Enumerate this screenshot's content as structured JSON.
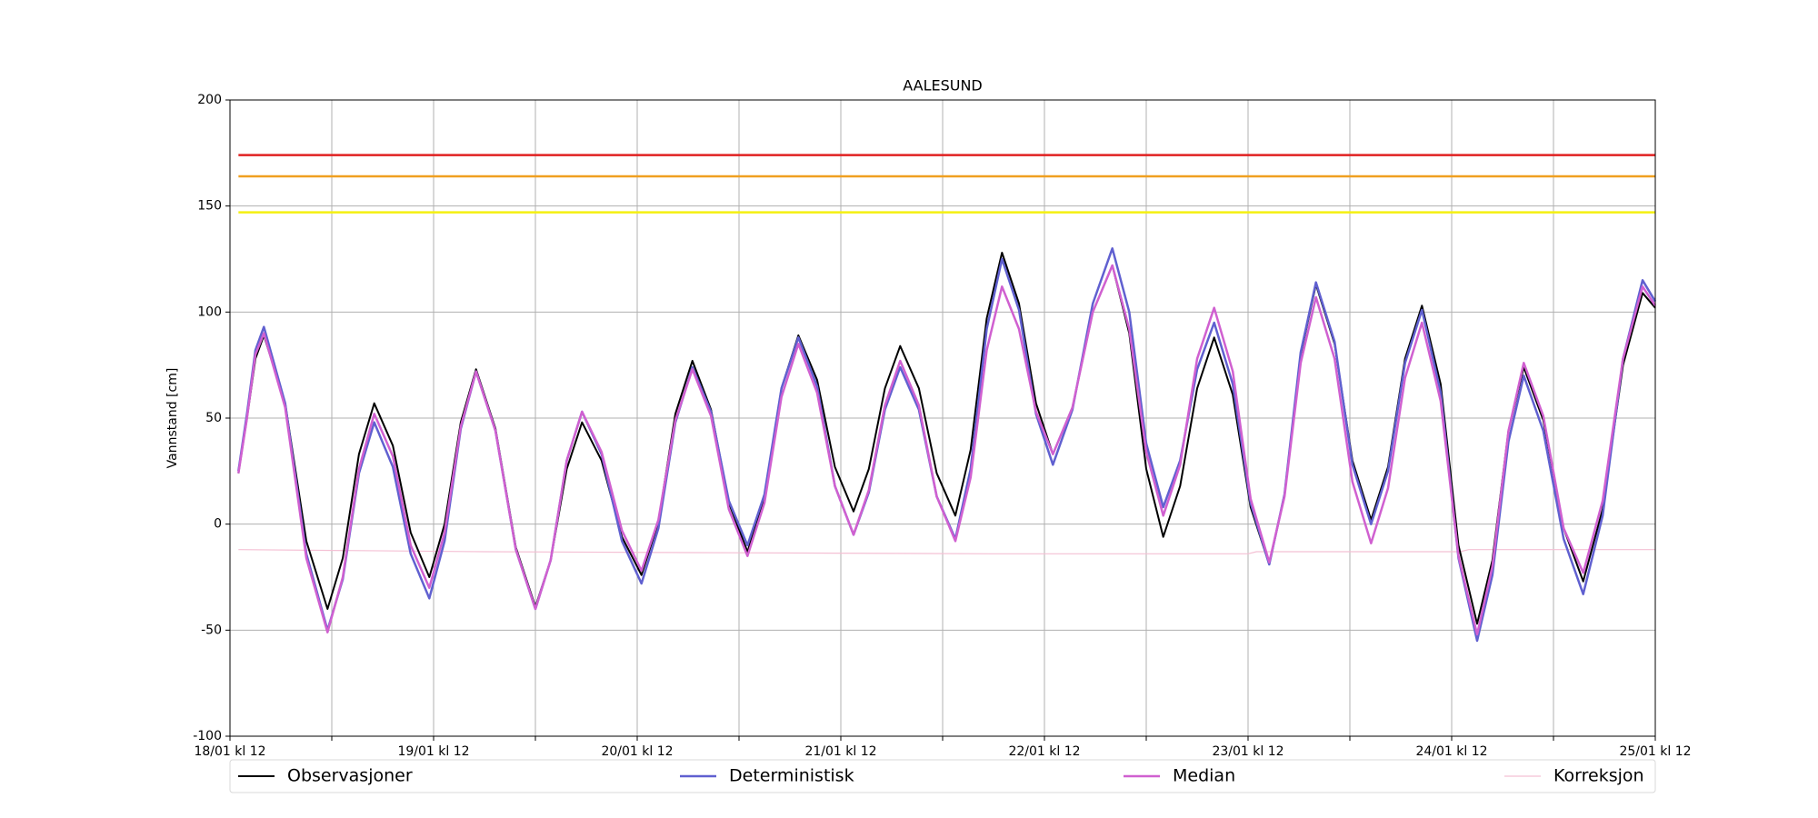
{
  "chart_data": {
    "type": "line",
    "title": "AALESUND",
    "y_label": "Vannstand [cm]",
    "x": [
      1,
      2,
      3,
      4,
      6.5,
      9,
      11.5,
      13.3,
      15.2,
      17,
      19.2,
      21.3,
      23.5,
      25.3,
      27.2,
      29,
      31.3,
      33.7,
      36,
      37.8,
      39.7,
      41.5,
      43.8,
      46.2,
      48.5,
      50.5,
      52.5,
      54.5,
      56.7,
      58.8,
      61,
      63,
      65,
      67,
      69.2,
      71.3,
      73.5,
      75.3,
      77.2,
      79,
      81.2,
      83.3,
      85.5,
      87.3,
      89.2,
      91,
      93,
      95,
      97,
      99.3,
      101.7,
      104,
      106,
      108,
      110,
      112,
      114,
      116,
      118.2,
      120.3,
      122.5,
      124.3,
      126.2,
      128,
      130.2,
      132.3,
      134.5,
      136.5,
      138.5,
      140.5,
      142.7,
      144.8,
      147,
      148.8,
      150.7,
      152.5,
      154.8,
      157.2,
      159.5,
      161.8,
      164.2,
      166.5,
      168
    ],
    "series": [
      {
        "name": "Observasjoner",
        "color": "#000000",
        "width": 2,
        "values": [
          24,
          50,
          78,
          89,
          57,
          -8,
          -40,
          -16,
          33,
          57,
          37,
          -4,
          -25,
          0,
          48,
          73,
          45,
          -11,
          -39,
          -17,
          26,
          48,
          30,
          -6,
          -24,
          1,
          52,
          77,
          54,
          10,
          -13,
          12,
          64,
          89,
          68,
          27,
          6,
          26,
          64,
          84,
          64,
          24,
          4,
          35,
          97,
          128,
          104,
          57,
          33,
          55,
          100,
          122,
          90,
          26,
          -6,
          18,
          64,
          88,
          61,
          8,
          -19,
          14,
          80,
          113,
          85,
          30,
          2,
          27,
          78,
          103,
          66,
          -10,
          -47,
          -17,
          44,
          74,
          49,
          -2,
          -27,
          7,
          75,
          109,
          102
        ]
      },
      {
        "name": "Deterministisk",
        "color": "#6060d0",
        "width": 2.5,
        "values": [
          25,
          52,
          82,
          93,
          57,
          -14,
          -50,
          -26,
          24,
          48,
          27,
          -14,
          -35,
          -8,
          45,
          72,
          44,
          -12,
          -40,
          -17,
          30,
          53,
          33,
          -8,
          -28,
          -2,
          48,
          74,
          53,
          11,
          -10,
          14,
          64,
          88,
          65,
          18,
          -5,
          15,
          54,
          74,
          54,
          13,
          -7,
          26,
          92,
          125,
          101,
          52,
          28,
          54,
          104,
          130,
          100,
          38,
          8,
          30,
          73,
          95,
          66,
          10,
          -19,
          14,
          81,
          114,
          86,
          28,
          0,
          25,
          76,
          101,
          62,
          -16,
          -55,
          -24,
          39,
          70,
          44,
          -7,
          -33,
          4,
          78,
          115,
          105
        ]
      },
      {
        "name": "Median",
        "color": "#d060d0",
        "width": 2.5,
        "values": [
          24,
          50,
          80,
          90,
          55,
          -16,
          -51,
          -25,
          26,
          52,
          32,
          -10,
          -30,
          -4,
          46,
          72,
          44,
          -12,
          -40,
          -17,
          30,
          53,
          34,
          -3,
          -22,
          2,
          49,
          73,
          51,
          7,
          -15,
          10,
          60,
          85,
          62,
          18,
          -5,
          16,
          56,
          77,
          56,
          13,
          -8,
          22,
          82,
          112,
          92,
          53,
          33,
          55,
          100,
          122,
          92,
          34,
          4,
          28,
          78,
          102,
          72,
          12,
          -18,
          13,
          76,
          107,
          78,
          20,
          -9,
          17,
          69,
          95,
          58,
          -15,
          -52,
          -20,
          44,
          76,
          51,
          -2,
          -23,
          11,
          78,
          112,
          103
        ]
      },
      {
        "name": "Korreksjon",
        "color": "#f4c0d4",
        "width": 1.2,
        "x": [
          1,
          30,
          60,
          90,
          120,
          121,
          145,
          146,
          168
        ],
        "values": [
          -12,
          -13,
          -13.5,
          -14,
          -14,
          -13,
          -13,
          -12,
          -12
        ]
      }
    ],
    "hlines": [
      {
        "value": 174,
        "color": "#e02020"
      },
      {
        "value": 164,
        "color": "#f0a020"
      },
      {
        "value": 147,
        "color": "#f4f010"
      }
    ],
    "xlim": [
      0,
      168
    ],
    "xticks": [
      {
        "value": 0,
        "label": "18/01 kl 12"
      },
      {
        "value": 24,
        "label": "19/01 kl 12"
      },
      {
        "value": 48,
        "label": "20/01 kl 12"
      },
      {
        "value": 72,
        "label": "21/01 kl 12"
      },
      {
        "value": 96,
        "label": "22/01 kl 12"
      },
      {
        "value": 120,
        "label": "23/01 kl 12"
      },
      {
        "value": 144,
        "label": "24/01 kl 12"
      },
      {
        "value": 168,
        "label": "25/01 kl 12"
      }
    ],
    "xminorticks": [
      12,
      36,
      60,
      84,
      108,
      132,
      156
    ],
    "ylim": [
      -100,
      200
    ],
    "yticks": [
      -100,
      -50,
      0,
      50,
      100,
      150,
      200
    ],
    "grid": true,
    "legend": "below"
  }
}
